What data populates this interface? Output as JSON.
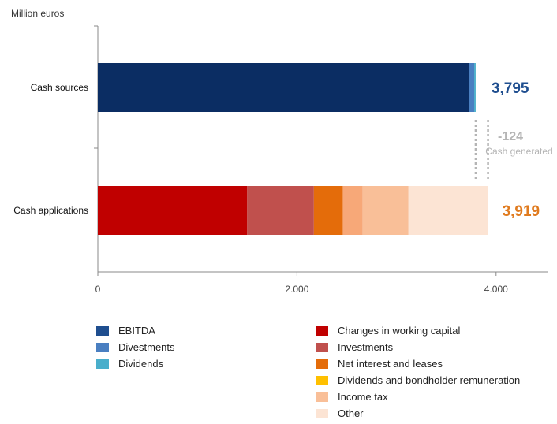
{
  "chart_data": {
    "type": "bar",
    "orientation": "horizontal",
    "stacked": true,
    "unit_label": "Million euros",
    "categories": [
      "Cash sources",
      "Cash applications"
    ],
    "series": [
      {
        "name": "EBITDA",
        "stack": "Cash sources",
        "value": 3730,
        "color": "#0b2d63"
      },
      {
        "name": "Divestments",
        "stack": "Cash sources",
        "value": 50,
        "color": "#4a7fc1"
      },
      {
        "name": "Dividends",
        "stack": "Cash sources",
        "value": 15,
        "color": "#49aecb"
      },
      {
        "name": "Changes in working capital",
        "stack": "Cash applications",
        "value": 1500,
        "color": "#c00000"
      },
      {
        "name": "Investments",
        "stack": "Cash applications",
        "value": 670,
        "color": "#c0504d"
      },
      {
        "name": "Net interest and leases",
        "stack": "Cash applications",
        "value": 290,
        "color": "#e46c0a"
      },
      {
        "name": "Dividends and bondholder remuneration",
        "stack": "Cash applications",
        "value": 0,
        "color": "#ffc000"
      },
      {
        "name": "Income tax",
        "stack": "Cash applications",
        "value": 200,
        "color": "#f7a878"
      },
      {
        "name": "Other",
        "stack": "Cash applications",
        "value": 460,
        "color": "#f9bf98"
      },
      {
        "name": "Other",
        "stack": "Cash applications",
        "value": 799,
        "color": "#fce4d4"
      }
    ],
    "totals": [
      {
        "category": "Cash sources",
        "label": "3,795",
        "value": 3795,
        "color": "#1f4e8f"
      },
      {
        "category": "Cash applications",
        "label": "3,919",
        "value": 3919,
        "color": "#e07b1f"
      }
    ],
    "annotation": {
      "value_label": "-124",
      "text": "Cash generated",
      "color": "#b5b5b5"
    },
    "xlim": [
      0,
      4500
    ],
    "xticks": [
      0,
      2000,
      4000
    ],
    "xtick_labels": [
      "0",
      "2.000",
      "4.000"
    ],
    "legend_placement": "bottom",
    "grid": false
  },
  "legend_left": [
    {
      "label": "EBITDA",
      "color": "#1f4e8f"
    },
    {
      "label": "Divestments",
      "color": "#4a7fc1"
    },
    {
      "label": "Dividends",
      "color": "#49aecb"
    }
  ],
  "legend_right": [
    {
      "label": "Changes in working capital",
      "color": "#c00000"
    },
    {
      "label": "Investments",
      "color": "#c0504d"
    },
    {
      "label": "Net interest and leases",
      "color": "#e46c0a"
    },
    {
      "label": "Dividends and bondholder remuneration",
      "color": "#ffc000"
    },
    {
      "label": "Income tax",
      "color": "#f9bf98"
    },
    {
      "label": "Other",
      "color": "#fce4d4"
    }
  ]
}
